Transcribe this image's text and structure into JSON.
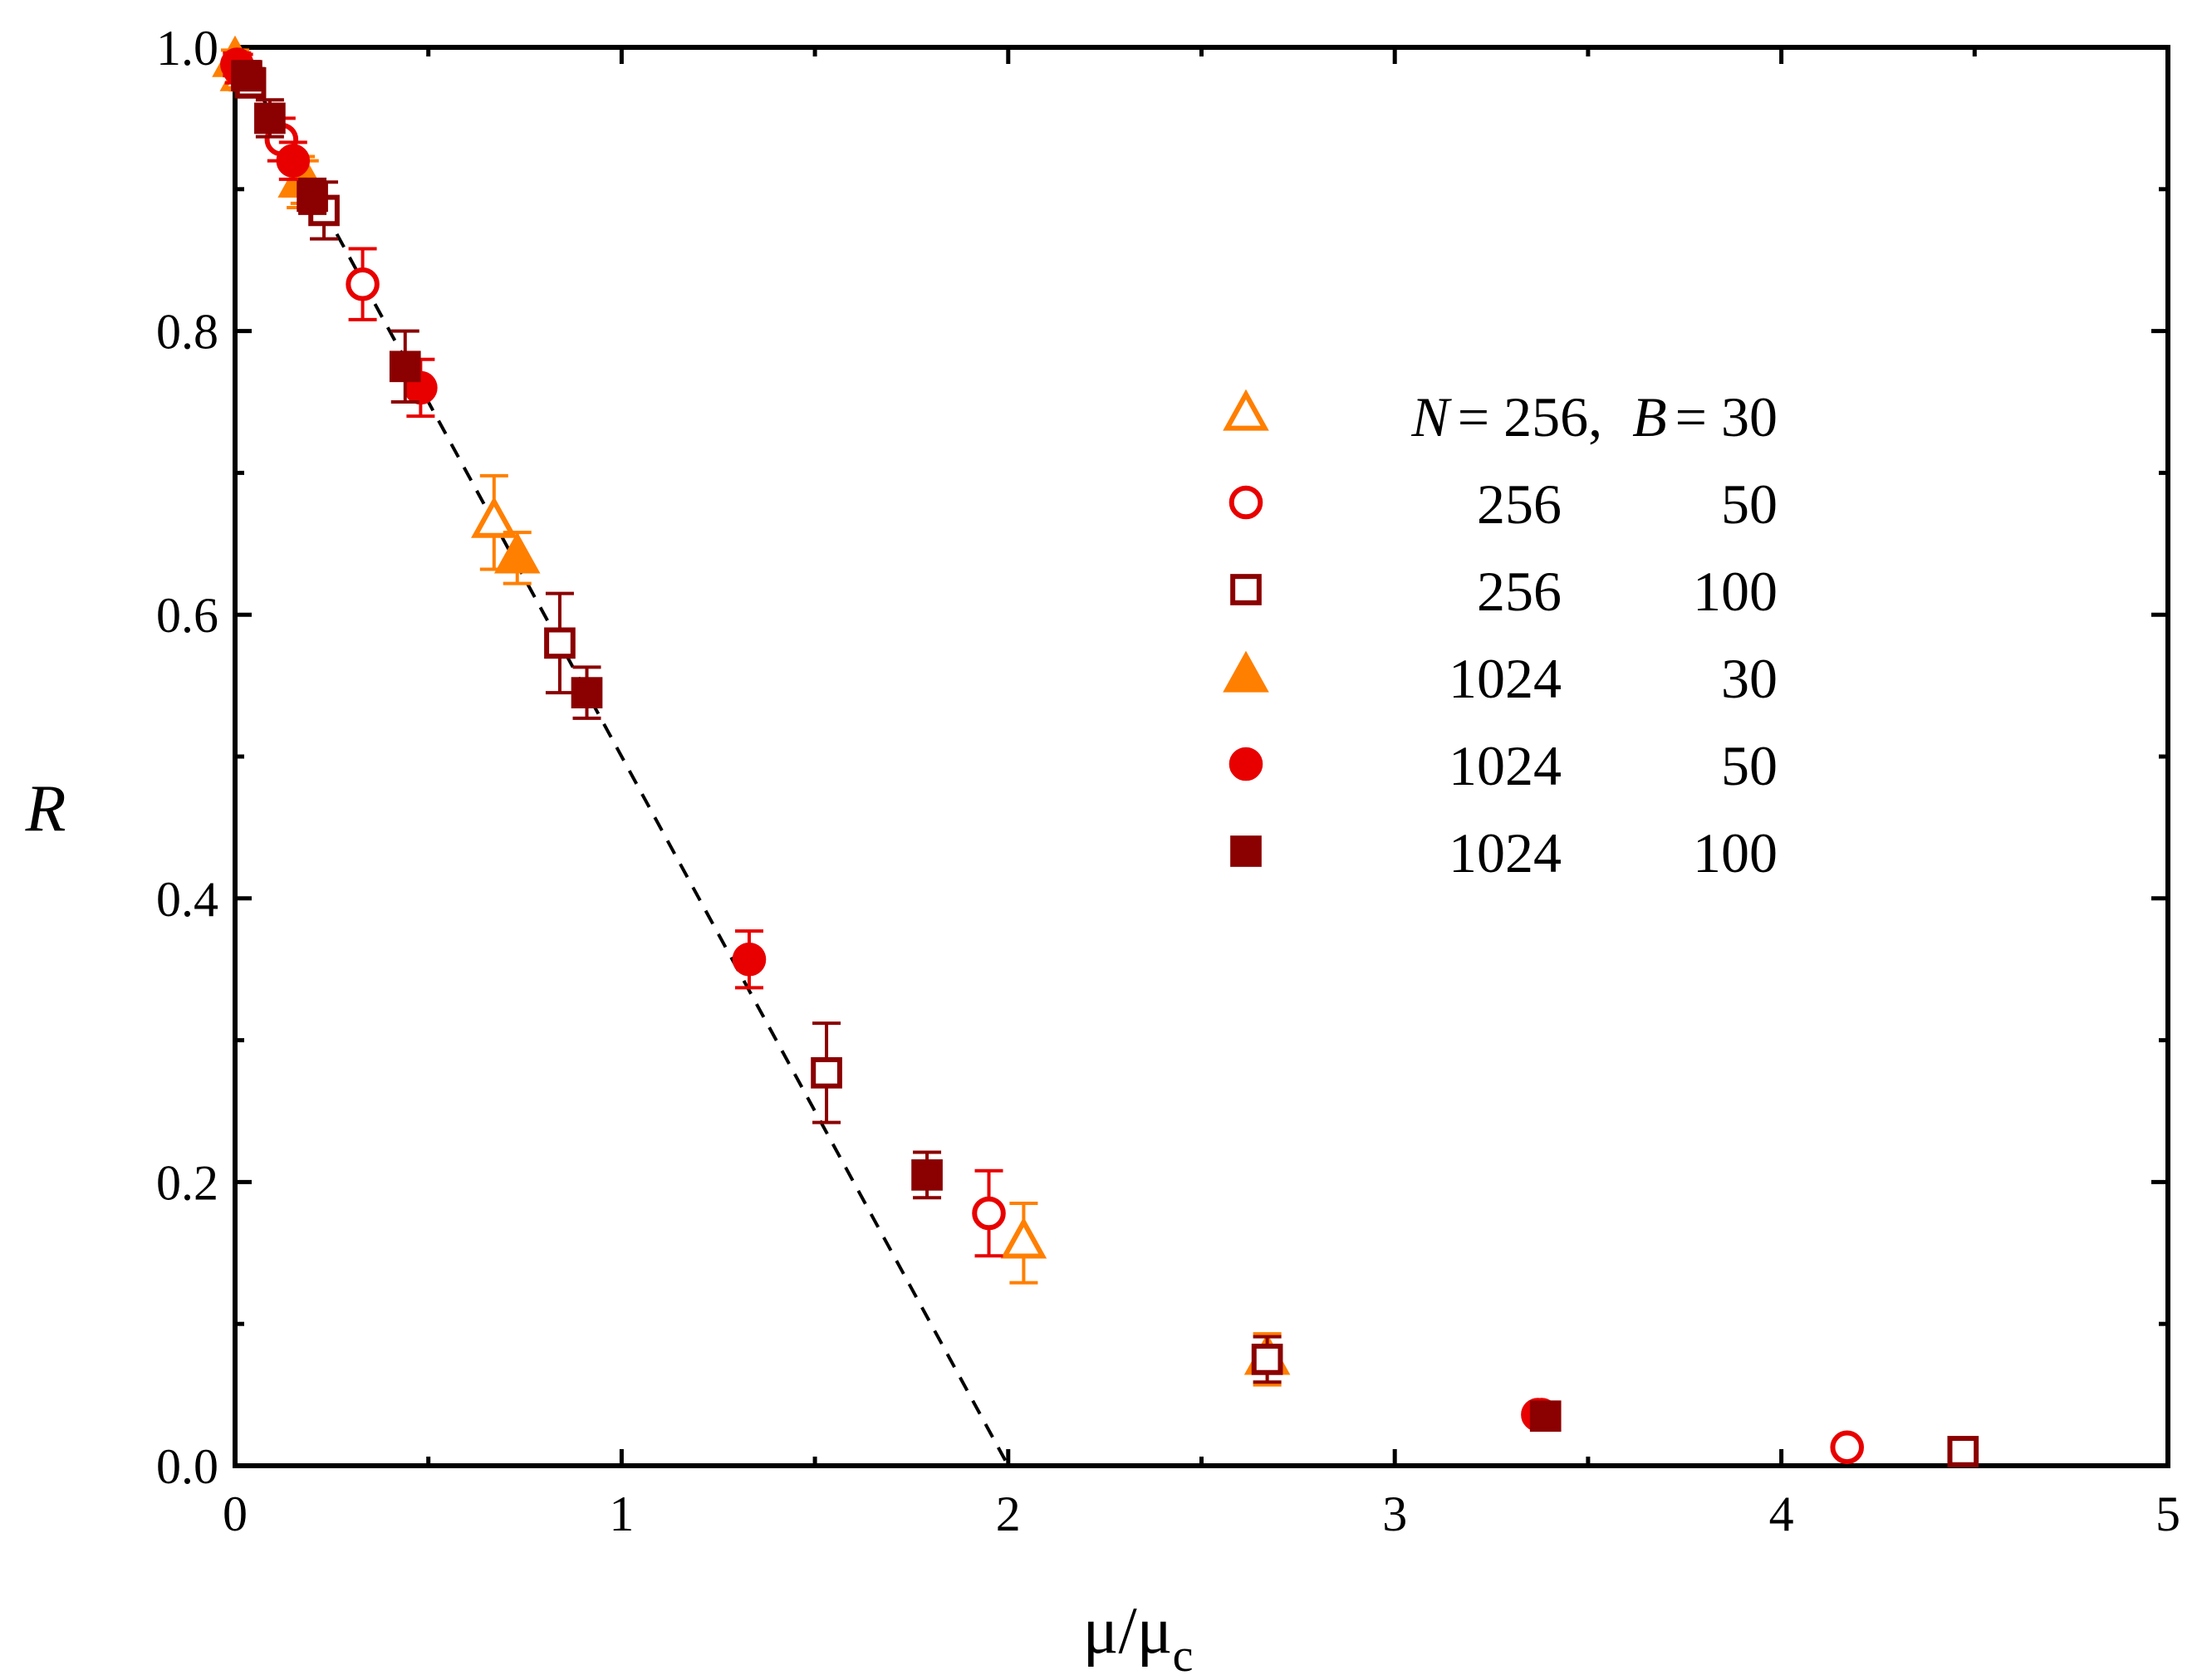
{
  "chart_data": {
    "type": "scatter",
    "xlabel": "μ/μ",
    "xlabel_sub": "c",
    "ylabel": "R",
    "xlim": [
      0,
      5
    ],
    "ylim": [
      0,
      1.0
    ],
    "x_ticks": [
      "0",
      "1",
      "2",
      "3",
      "4",
      "5"
    ],
    "y_ticks": [
      "0.0",
      "0.2",
      "0.4",
      "0.6",
      "0.8",
      "1.0"
    ],
    "legend": {
      "position": "center-right",
      "header": {
        "N": "N",
        "eq1": "= 256,",
        "B": "B",
        "eq2": "= 30"
      },
      "rows": [
        {
          "N": "256",
          "B": "50"
        },
        {
          "N": "256",
          "B": "100"
        },
        {
          "N": "1024",
          "B": "30"
        },
        {
          "N": "1024",
          "B": "50"
        },
        {
          "N": "1024",
          "B": "100"
        }
      ]
    },
    "fit_line": {
      "style": "dashed",
      "color": "#000000",
      "x": [
        0,
        2
      ],
      "y": [
        1.0,
        0.0
      ]
    },
    "series": [
      {
        "name": "N = 256, B = 30",
        "marker": "triangle",
        "filled": false,
        "color": "#FF7F00",
        "x": [
          0.02,
          0.17,
          0.67,
          2.04,
          2.67
        ],
        "y": [
          0.98,
          0.905,
          0.665,
          0.157,
          0.075
        ],
        "err": [
          0.01,
          0.018,
          0.033,
          0.028,
          0.018
        ]
      },
      {
        "name": "256 50",
        "marker": "circle",
        "filled": false,
        "color": "#E80000",
        "x": [
          0.01,
          0.12,
          0.33,
          1.95,
          3.38,
          4.17
        ],
        "y": [
          0.985,
          0.935,
          0.833,
          0.178,
          0.036,
          0.013
        ],
        "err": [
          0.01,
          0.015,
          0.025,
          0.03,
          0.006,
          0.005
        ]
      },
      {
        "name": "256 100",
        "marker": "square",
        "filled": false,
        "color": "#8B0000",
        "x": [
          0.04,
          0.23,
          0.84,
          1.53,
          2.67,
          4.47
        ],
        "y": [
          0.975,
          0.885,
          0.58,
          0.277,
          0.075,
          0.01
        ],
        "err": [
          0.01,
          0.02,
          0.035,
          0.035,
          0.016,
          0.005
        ]
      },
      {
        "name": "1024 30",
        "marker": "triangle",
        "filled": true,
        "color": "#FF7F00",
        "x": [
          0.0,
          0.18,
          0.73
        ],
        "y": [
          0.99,
          0.905,
          0.64
        ],
        "err": [
          0.008,
          0.015,
          0.018
        ]
      },
      {
        "name": "1024 50",
        "marker": "circle",
        "filled": true,
        "color": "#E80000",
        "x": [
          0.005,
          0.15,
          0.48,
          1.33,
          3.37
        ],
        "y": [
          0.988,
          0.92,
          0.76,
          0.357,
          0.036
        ],
        "err": [
          0.008,
          0.013,
          0.02,
          0.02,
          0.005
        ]
      },
      {
        "name": "1024 100",
        "marker": "square",
        "filled": true,
        "color": "#8B0000",
        "x": [
          0.03,
          0.09,
          0.2,
          0.44,
          0.91,
          1.79,
          3.39
        ],
        "y": [
          0.98,
          0.95,
          0.895,
          0.775,
          0.545,
          0.205,
          0.035
        ],
        "err": [
          0.01,
          0.013,
          0.012,
          0.025,
          0.018,
          0.016,
          0.004
        ]
      }
    ]
  }
}
